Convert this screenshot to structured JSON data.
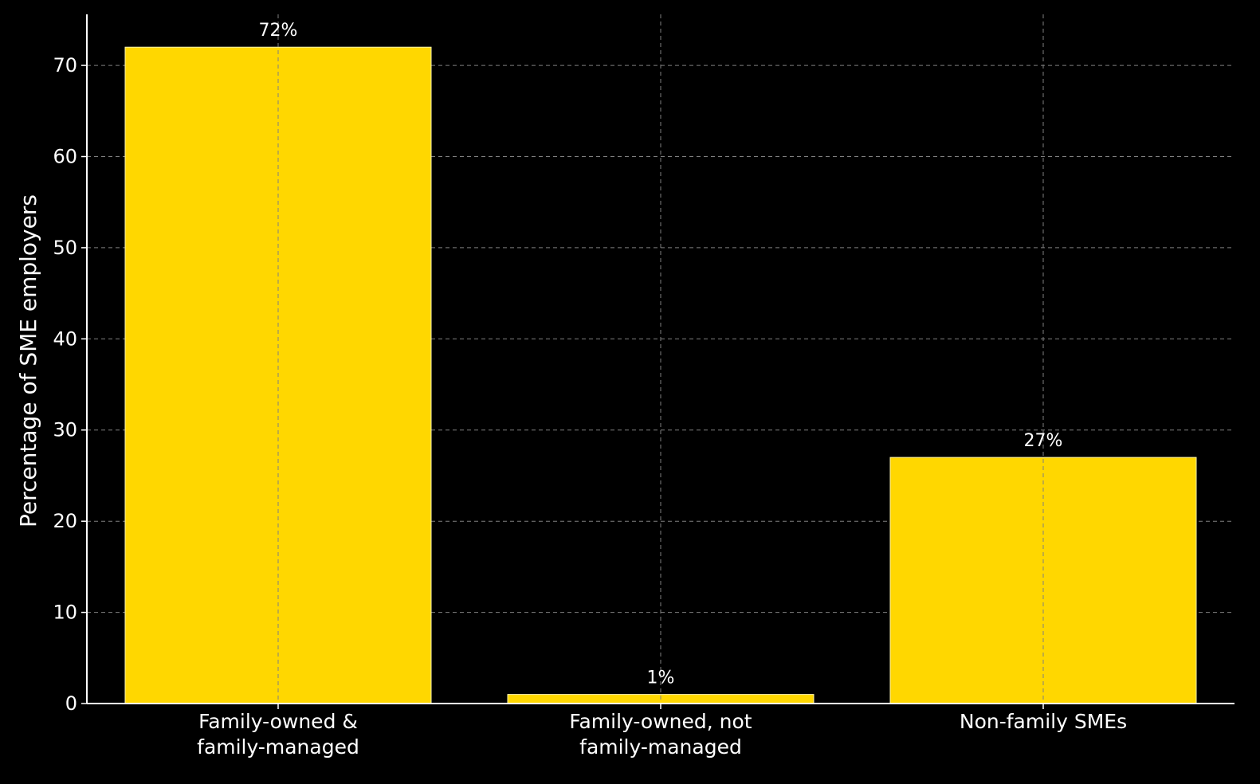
{
  "chart_data": {
    "type": "bar",
    "categories": [
      [
        "Family-owned &",
        "family-managed"
      ],
      [
        "Family-owned, not",
        "family-managed"
      ],
      [
        "Non-family SMEs"
      ]
    ],
    "values": [
      72,
      1,
      27
    ],
    "data_labels": [
      "72%",
      "1%",
      "27%"
    ],
    "title": "",
    "xlabel": "",
    "ylabel": "Percentage of SME employers",
    "ylim": [
      0,
      75.6
    ],
    "yticks": [
      "0",
      "10",
      "20",
      "30",
      "40",
      "50",
      "60",
      "70"
    ],
    "ytick_values": [
      0,
      10,
      20,
      30,
      40,
      50,
      60,
      70
    ],
    "grid": true,
    "grid_style": "dashed",
    "colors": {
      "background": "#000000",
      "bar": "#FFD700",
      "bar_edge": "#FFF6B0",
      "text": "#FFFFFF",
      "axis": "#FFFFFF",
      "grid": "#808080"
    }
  }
}
